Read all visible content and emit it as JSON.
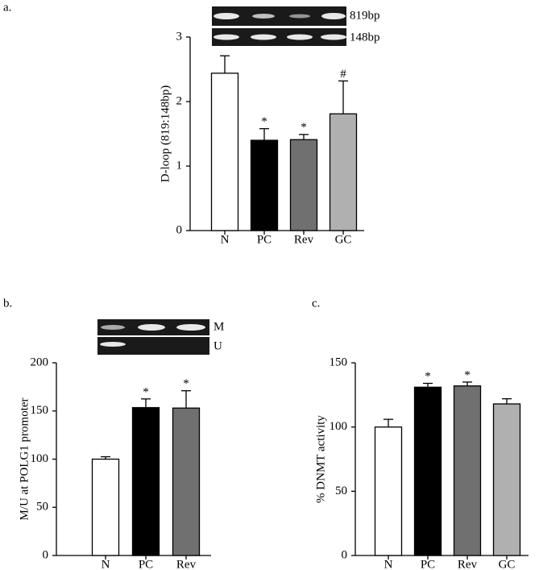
{
  "chart_data": [
    {
      "type": "bar",
      "panel": "a.",
      "ylabel": "D-loop (819:148bp)",
      "categories": [
        "N",
        "PC",
        "Rev",
        "GC"
      ],
      "series": [
        {
          "colors": [
            "#ffffff",
            "#000000",
            "#707070",
            "#b0b0b0"
          ],
          "values": [
            2.44,
            1.4,
            1.41,
            1.81
          ],
          "errors": [
            0.27,
            0.18,
            0.08,
            0.51
          ],
          "annotations": [
            null,
            "*",
            "*",
            "#"
          ]
        }
      ],
      "ylim": [
        0,
        3
      ],
      "yticks": [
        0,
        1,
        2,
        3
      ],
      "gel_labels": [
        "819bp",
        "148bp"
      ]
    },
    {
      "type": "bar",
      "panel": "b.",
      "ylabel": "M/U at POLG1 promoter",
      "categories": [
        "N",
        "PC",
        "Rev"
      ],
      "series": [
        {
          "colors": [
            "#ffffff",
            "#000000",
            "#707070"
          ],
          "values": [
            100,
            153.5,
            153
          ],
          "errors": [
            2.5,
            9,
            18
          ],
          "annotations": [
            null,
            "*",
            "*"
          ]
        }
      ],
      "ylim": [
        0,
        200
      ],
      "yticks": [
        0,
        50,
        100,
        150,
        200
      ],
      "gel_labels": [
        "M",
        "U"
      ]
    },
    {
      "type": "bar",
      "panel": "c.",
      "ylabel": "% DNMT activity",
      "categories": [
        "N",
        "PC",
        "Rev",
        "GC"
      ],
      "series": [
        {
          "colors": [
            "#ffffff",
            "#000000",
            "#707070",
            "#b0b0b0"
          ],
          "values": [
            100,
            131,
            132,
            118
          ],
          "errors": [
            6,
            3,
            3,
            4
          ],
          "annotations": [
            null,
            "*",
            "*",
            null
          ]
        }
      ],
      "ylim": [
        0,
        150
      ],
      "yticks": [
        0,
        50,
        100,
        150
      ]
    }
  ]
}
